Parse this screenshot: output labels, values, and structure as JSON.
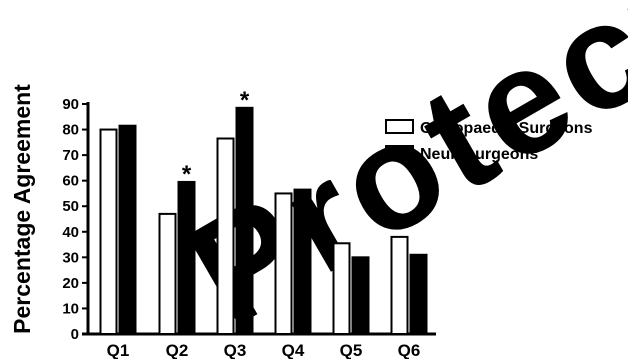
{
  "watermark": {
    "text": "Protected"
  },
  "chart_data": {
    "type": "bar",
    "categories": [
      "Q1",
      "Q2",
      "Q3",
      "Q4",
      "Q5",
      "Q6"
    ],
    "series": [
      {
        "name": "Orthopaedic Surgeons",
        "values": [
          80,
          47,
          76.5,
          55,
          35.5,
          38
        ],
        "color": "#ffffff",
        "stroke": "#000000"
      },
      {
        "name": "Neurosurgeons",
        "values": [
          81.5,
          59.5,
          88.5,
          56.5,
          30,
          31
        ],
        "color": "#000000",
        "stroke": "#000000"
      }
    ],
    "significance": [
      {
        "category": "Q2",
        "series": "Neurosurgeons",
        "marker": "*"
      },
      {
        "category": "Q3",
        "series": "Neurosurgeons",
        "marker": "*"
      }
    ],
    "ylabel": "Percentage Agreement",
    "ylim": [
      0,
      90
    ],
    "yticks": [
      0,
      10,
      20,
      30,
      40,
      50,
      60,
      70,
      80,
      90
    ],
    "legend_position": "top-right",
    "grid": false
  }
}
